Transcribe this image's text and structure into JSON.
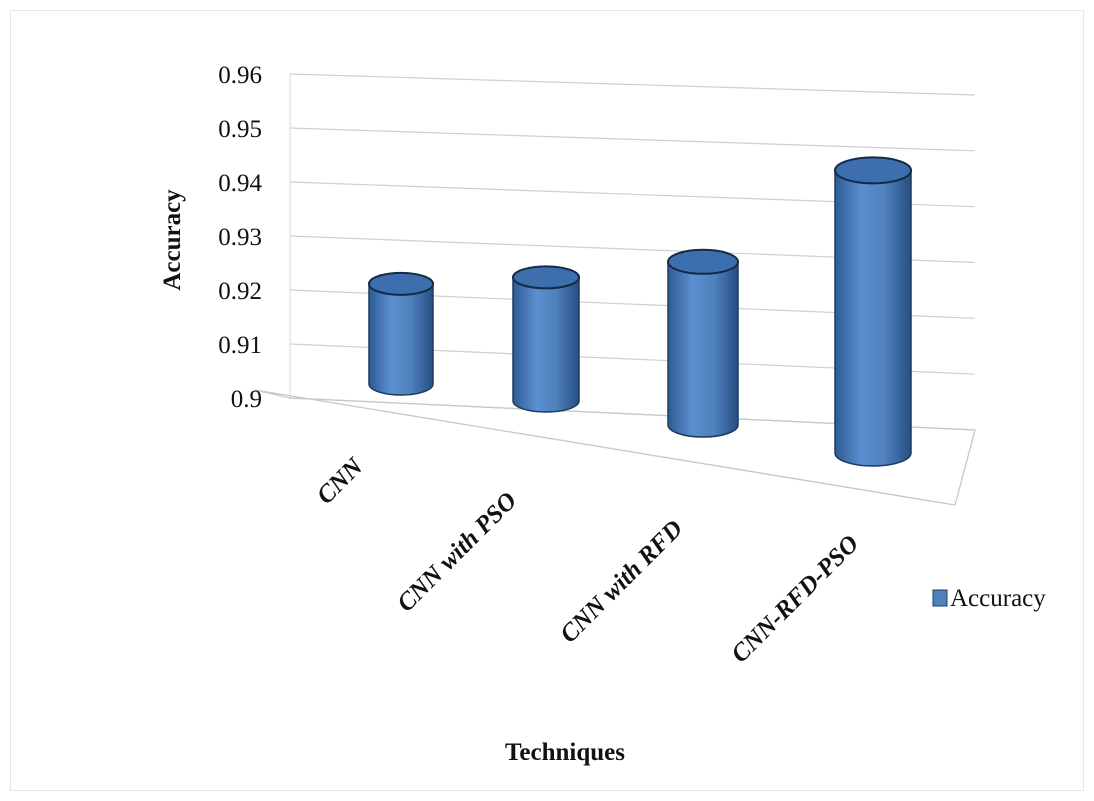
{
  "chart_data": {
    "type": "bar",
    "style": "3d-cylinder",
    "title": "",
    "xlabel": "Techniques",
    "ylabel": "Accuracy",
    "ylim": [
      0.9,
      0.96
    ],
    "yticks": [
      "0.9",
      "0.91",
      "0.92",
      "0.93",
      "0.94",
      "0.95",
      "0.96"
    ],
    "categories": [
      "CNN",
      "CNN with PSO",
      "CNN with RFD",
      "CNN-RFD-PSO"
    ],
    "series": [
      {
        "name": "Accuracy",
        "values": [
          0.918,
          0.921,
          0.926,
          0.942
        ],
        "color": "#4f81bd"
      }
    ],
    "legend_position": "right",
    "grid": true
  }
}
